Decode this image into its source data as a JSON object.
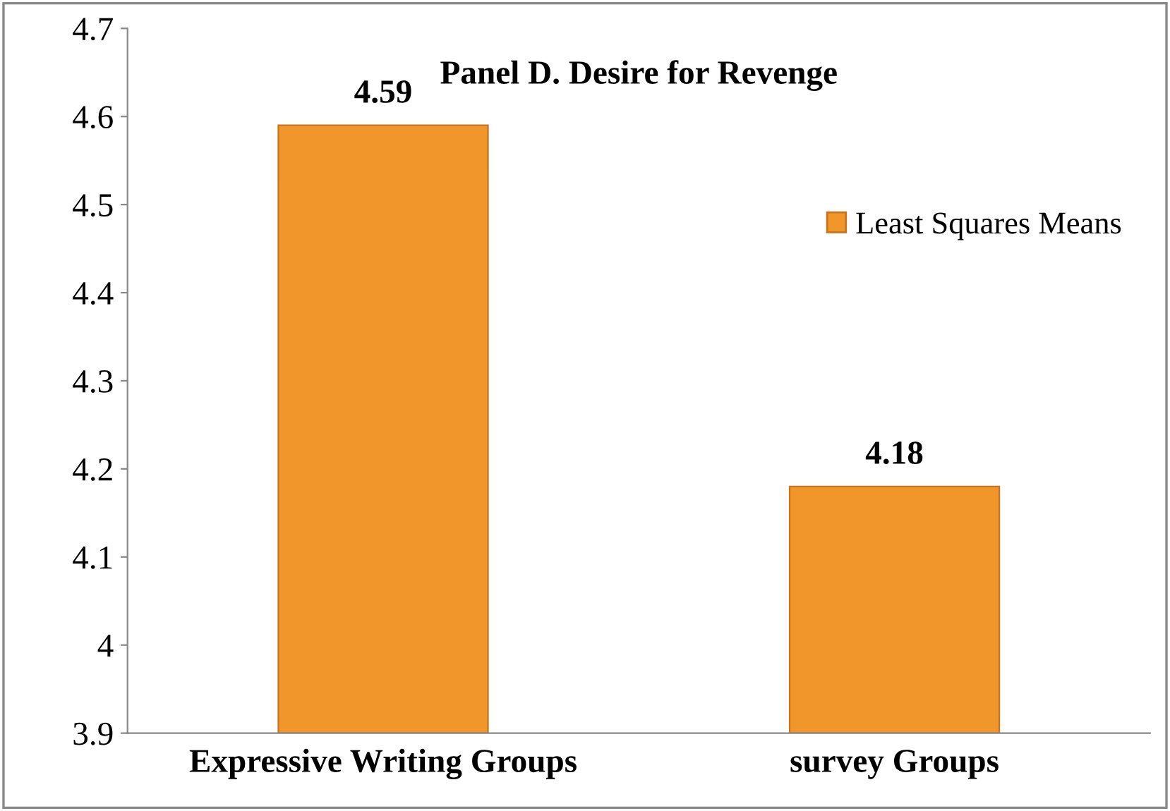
{
  "chart_data": {
    "type": "bar",
    "title": "Panel D. Desire for Revenge",
    "categories": [
      "Expressive Writing Groups",
      "survey Groups"
    ],
    "series": [
      {
        "name": "Least Squares Means",
        "color": "#f0962a",
        "values": [
          4.59,
          4.18
        ]
      }
    ],
    "ylim": [
      3.9,
      4.7
    ],
    "yticks": [
      3.9,
      4,
      4.1,
      4.2,
      4.3,
      4.4,
      4.5,
      4.6,
      4.7
    ],
    "data_labels": true,
    "grid": false,
    "legend": "right"
  }
}
